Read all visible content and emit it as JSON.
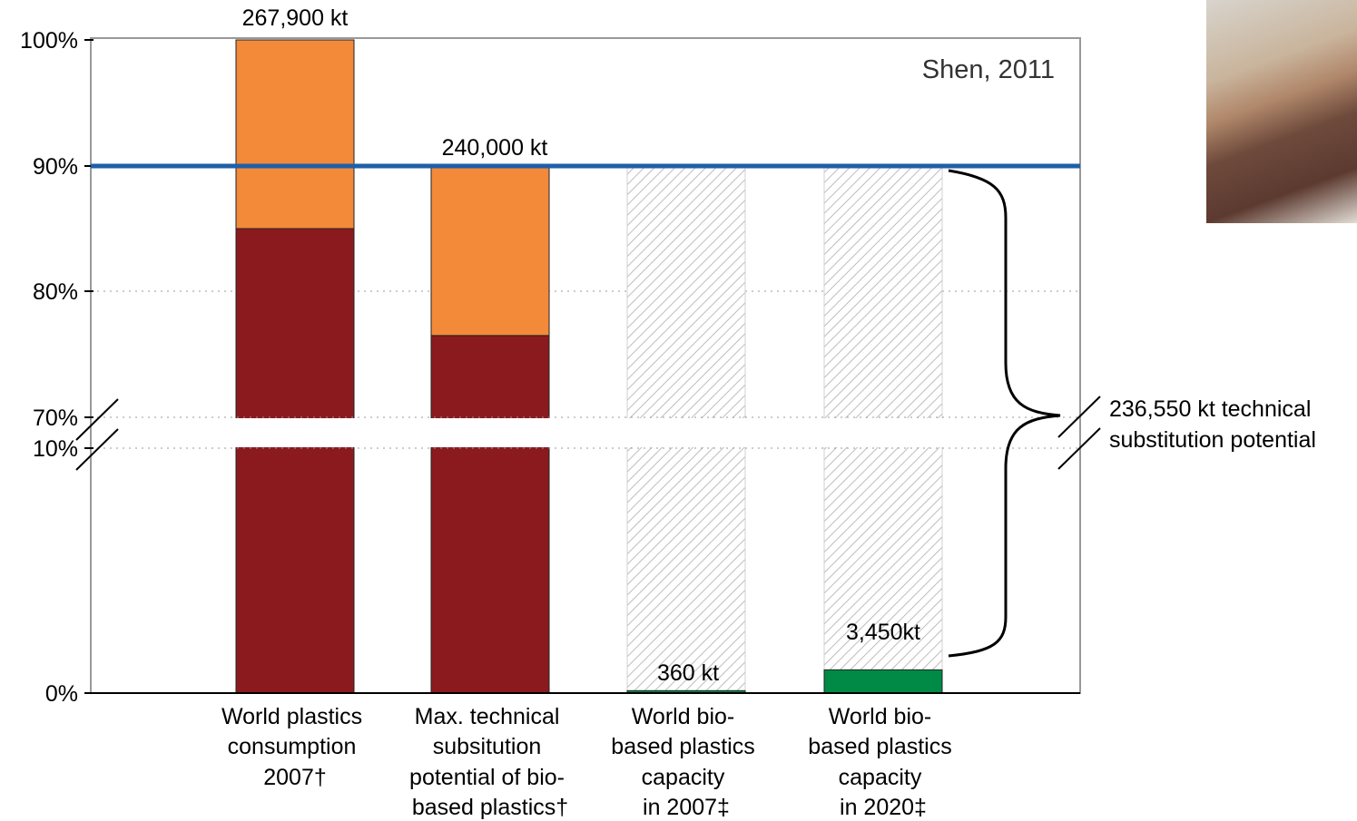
{
  "chart_data": {
    "type": "bar",
    "stacked": true,
    "y_axis_break": {
      "lower_range": [
        0,
        10
      ],
      "upper_range": [
        70,
        100
      ]
    },
    "yticks": [
      "100%",
      "90%",
      "80%",
      "70%",
      "10%",
      "0%"
    ],
    "categories": [
      [
        "World plastics",
        "consumption",
        "2007†"
      ],
      [
        "Max. technical",
        "subsitution",
        "potential of bio-",
        "based plastics†"
      ],
      [
        "World bio-",
        "based plastics",
        "capacity",
        "in 2007‡"
      ],
      [
        "World bio-",
        "based plastics",
        "capacity",
        "in 2020‡"
      ]
    ],
    "bars": [
      {
        "top_percent": 100,
        "dark_red_top": 85,
        "orange_top": 100,
        "label": "267,900 kt"
      },
      {
        "top_percent": 90,
        "dark_red_top": 76.5,
        "orange_top": 90,
        "label": "240,000 kt"
      },
      {
        "top_percent": 90,
        "green_top": 0.1,
        "label": "360 kt"
      },
      {
        "top_percent": 90,
        "green_top": 0.95,
        "label": "3,450kt"
      }
    ],
    "reference_line": {
      "y": 90,
      "color": "#1f5fa8"
    },
    "source_note": "Shen, 2011",
    "brace_annotation": [
      "236,550 kt technical",
      "substitution potential"
    ],
    "colors": {
      "dark_red": "#8b1a1e",
      "orange": "#f28a3a",
      "green": "#008a45",
      "hatch": "#bdbdbd"
    },
    "grid": true
  }
}
